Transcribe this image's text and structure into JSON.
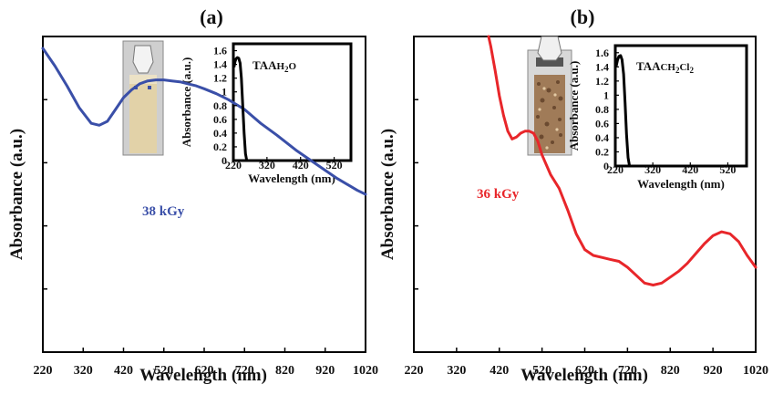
{
  "chart_data": [
    {
      "panel_label": "(a)",
      "type": "line",
      "xlabel": "Wavelength (nm)",
      "ylabel": "Absorbance (a.u.)",
      "xlim": [
        220,
        1020
      ],
      "ylim": [
        0,
        1.6
      ],
      "x_ticks": [
        "220",
        "320",
        "420",
        "520",
        "620",
        "720",
        "820",
        "920",
        "1020"
      ],
      "y_ticks_labeled": false,
      "annotation": "38 kGy",
      "colors": {
        "series": "#3a4fa8"
      },
      "series": [
        {
          "name": "38 kGy",
          "x": [
            220,
            250,
            280,
            310,
            340,
            360,
            380,
            400,
            420,
            440,
            460,
            480,
            500,
            520,
            540,
            560,
            580,
            600,
            620,
            650,
            680,
            720,
            760,
            800,
            850,
            900,
            950,
            1000,
            1020
          ],
          "y": [
            1.54,
            1.45,
            1.35,
            1.24,
            1.16,
            1.15,
            1.17,
            1.23,
            1.29,
            1.33,
            1.36,
            1.375,
            1.38,
            1.38,
            1.375,
            1.37,
            1.36,
            1.35,
            1.335,
            1.31,
            1.28,
            1.23,
            1.16,
            1.1,
            1.02,
            0.95,
            0.88,
            0.82,
            0.8
          ]
        }
      ],
      "inset": {
        "solution_label": "TAA",
        "solution_sub": "H2O",
        "xlabel": "Wavelength (nm)",
        "ylabel": "Absorbance (a.u.)",
        "xlim": [
          220,
          570
        ],
        "ylim": [
          0,
          1.7
        ],
        "x_ticks": [
          "220",
          "320",
          "420",
          "520"
        ],
        "y_ticks": [
          "0",
          "0.2",
          "0.4",
          "0.6",
          "0.8",
          "1",
          "1.2",
          "1.4",
          "1.6"
        ],
        "x": [
          222,
          225,
          228,
          232,
          236,
          240,
          244,
          248,
          252,
          256,
          260
        ],
        "y": [
          1.36,
          1.44,
          1.48,
          1.5,
          1.49,
          1.42,
          1.2,
          0.8,
          0.4,
          0.1,
          0.0
        ]
      }
    },
    {
      "panel_label": "(b)",
      "type": "line",
      "xlabel": "Wavelength (nm)",
      "ylabel": "Absorbance (a.u.)",
      "xlim": [
        220,
        1020
      ],
      "ylim": [
        0,
        1.6
      ],
      "x_ticks": [
        "220",
        "320",
        "420",
        "520",
        "620",
        "720",
        "820",
        "920",
        "1020"
      ],
      "y_ticks_labeled": false,
      "annotation": "36 kGy",
      "colors": {
        "series": "#e8262a"
      },
      "series": [
        {
          "name": "36 kGy",
          "x": [
            395,
            400,
            410,
            420,
            430,
            440,
            450,
            460,
            470,
            480,
            490,
            500,
            510,
            520,
            540,
            560,
            580,
            600,
            620,
            640,
            660,
            680,
            700,
            720,
            740,
            760,
            780,
            800,
            820,
            840,
            860,
            880,
            900,
            920,
            940,
            960,
            980,
            1000,
            1020
          ],
          "y": [
            1.6,
            1.55,
            1.43,
            1.3,
            1.2,
            1.12,
            1.08,
            1.09,
            1.11,
            1.12,
            1.12,
            1.11,
            1.07,
            1.0,
            0.9,
            0.83,
            0.72,
            0.6,
            0.52,
            0.49,
            0.48,
            0.47,
            0.46,
            0.43,
            0.39,
            0.35,
            0.34,
            0.35,
            0.38,
            0.41,
            0.45,
            0.5,
            0.55,
            0.59,
            0.61,
            0.6,
            0.56,
            0.49,
            0.43
          ]
        }
      ],
      "inset": {
        "solution_label": "TAA",
        "solution_sub": "CH2Cl2",
        "xlabel": "Wavelength (nm)",
        "ylabel": "Absorbance (a.u.)",
        "xlim": [
          220,
          570
        ],
        "ylim": [
          0,
          1.7
        ],
        "x_ticks": [
          "220",
          "320",
          "420",
          "520"
        ],
        "y_ticks": [
          "0",
          "0.2",
          "0.4",
          "0.6",
          "0.8",
          "1",
          "1.2",
          "1.4",
          "1.6"
        ],
        "x": [
          222,
          226,
          230,
          234,
          238,
          242,
          246,
          250,
          254,
          258
        ],
        "y": [
          1.4,
          1.5,
          1.55,
          1.56,
          1.5,
          1.3,
          0.9,
          0.45,
          0.12,
          0.0
        ]
      }
    }
  ]
}
